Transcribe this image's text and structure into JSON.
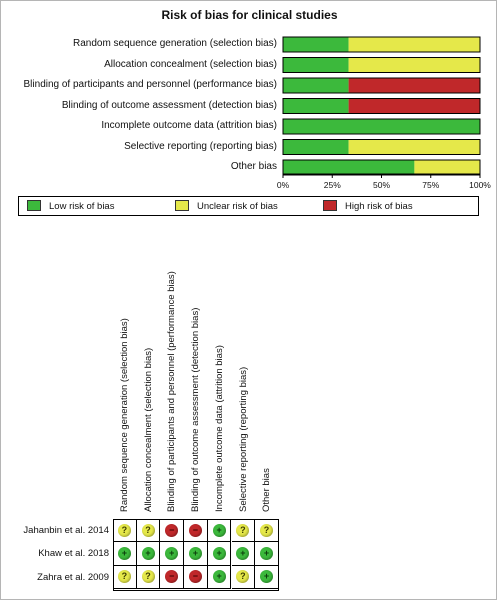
{
  "title": "Risk of bias for clinical studies",
  "colors": {
    "low": "#3cb93c",
    "unclear": "#e5e84a",
    "high": "#c0282a"
  },
  "chart_data": [
    {
      "type": "bar",
      "orientation": "horizontal",
      "stacked": true,
      "title": "Risk of bias for clinical studies",
      "categories": [
        "Random sequence generation (selection bias)",
        "Allocation concealment (selection bias)",
        "Blinding of participants and personnel (performance bias)",
        "Blinding of outcome assessment (detection bias)",
        "Incomplete outcome data (attrition bias)",
        "Selective reporting (reporting bias)",
        "Other bias"
      ],
      "series": [
        {
          "name": "Low risk of bias",
          "color": "#3cb93c",
          "values": [
            33.3,
            33.3,
            33.3,
            33.3,
            100,
            33.3,
            66.7
          ]
        },
        {
          "name": "Unclear risk of bias",
          "color": "#e5e84a",
          "values": [
            66.7,
            66.7,
            0,
            0,
            0,
            66.7,
            33.3
          ]
        },
        {
          "name": "High risk of bias",
          "color": "#c0282a",
          "values": [
            0,
            0,
            66.7,
            66.7,
            0,
            0,
            0
          ]
        }
      ],
      "xticks": [
        "0%",
        "25%",
        "50%",
        "75%",
        "100%"
      ],
      "xlim": [
        0,
        100
      ],
      "legend_position": "bottom"
    },
    {
      "type": "table",
      "columns": [
        "Random sequence generation (selection bias)",
        "Allocation concealment (selection bias)",
        "Blinding of participants and personnel (performance bias)",
        "Blinding of outcome assessment (detection bias)",
        "Incomplete outcome data (attrition bias)",
        "Selective reporting (reporting bias)",
        "Other bias"
      ],
      "rows": [
        {
          "study": "Jahanbin et al. 2014",
          "ratings": [
            "unclear",
            "unclear",
            "high",
            "high",
            "low",
            "unclear",
            "unclear"
          ]
        },
        {
          "study": "Khaw et al. 2018",
          "ratings": [
            "low",
            "low",
            "low",
            "low",
            "low",
            "low",
            "low"
          ]
        },
        {
          "study": "Zahra et al. 2009",
          "ratings": [
            "unclear",
            "unclear",
            "high",
            "high",
            "low",
            "unclear",
            "low"
          ]
        }
      ],
      "symbols": {
        "low": "+",
        "unclear": "?",
        "high": "−"
      }
    }
  ],
  "legend": {
    "low": "Low risk of bias",
    "unclear": "Unclear risk of bias",
    "high": "High risk of bias"
  }
}
